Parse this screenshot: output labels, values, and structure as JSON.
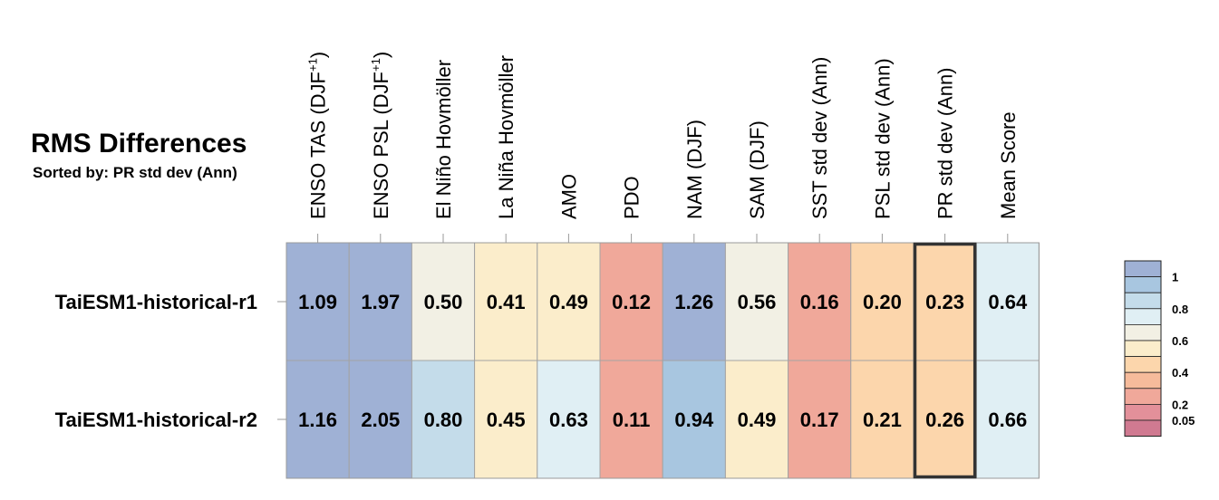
{
  "chart_data": {
    "type": "heatmap",
    "title": "RMS Differences",
    "subtitle": "Sorted by: PR std dev (Ann)",
    "columns": [
      {
        "base": "ENSO TAS (DJF",
        "sup": "+1",
        "tail": ")"
      },
      {
        "base": "ENSO PSL (DJF",
        "sup": "+1",
        "tail": ")"
      },
      {
        "base": "El Niño Hovmöller"
      },
      {
        "base": "La Niña Hovmöller"
      },
      {
        "base": "AMO"
      },
      {
        "base": "PDO"
      },
      {
        "base": "NAM (DJF)"
      },
      {
        "base": "SAM (DJF)"
      },
      {
        "base": "SST std dev (Ann)"
      },
      {
        "base": "PSL std dev (Ann)"
      },
      {
        "base": "PR std dev (Ann)"
      },
      {
        "base": "Mean Score"
      }
    ],
    "rows": [
      "TaiESM1-historical-r1",
      "TaiESM1-historical-r2"
    ],
    "values": [
      [
        "1.09",
        "1.97",
        "0.50",
        "0.41",
        "0.49",
        "0.12",
        "1.26",
        "0.56",
        "0.16",
        "0.20",
        "0.23",
        "0.64"
      ],
      [
        "1.16",
        "2.05",
        "0.80",
        "0.45",
        "0.63",
        "0.11",
        "0.94",
        "0.49",
        "0.17",
        "0.21",
        "0.26",
        "0.66"
      ]
    ],
    "sorted_column_index": 10,
    "colorbar": {
      "colors": [
        "#9fb1d5",
        "#a8c6e0",
        "#c4dcea",
        "#e0eff4",
        "#f2f0e4",
        "#fbedcb",
        "#fcd6ac",
        "#f6bb9b",
        "#f0a89a",
        "#e3909a",
        "#d07a91"
      ],
      "labels": [
        "1",
        "0.8",
        "0.6",
        "0.4",
        "0.2",
        "0.05"
      ],
      "label_boundaries": [
        1,
        3,
        5,
        7,
        9,
        10
      ]
    },
    "cell_colors": [
      [
        "#9fb1d5",
        "#9fb1d5",
        "#f2f0e4",
        "#fbedcb",
        "#fbedcb",
        "#f0a89a",
        "#9fb1d5",
        "#f2f0e4",
        "#f0a89a",
        "#fcd6ac",
        "#fcd6ac",
        "#e0eff4"
      ],
      [
        "#9fb1d5",
        "#9fb1d5",
        "#c4dcea",
        "#fbedcb",
        "#e0eff4",
        "#f0a89a",
        "#a8c6e0",
        "#fbedcb",
        "#f0a89a",
        "#fcd6ac",
        "#fcd6ac",
        "#e0eff4"
      ]
    ]
  }
}
